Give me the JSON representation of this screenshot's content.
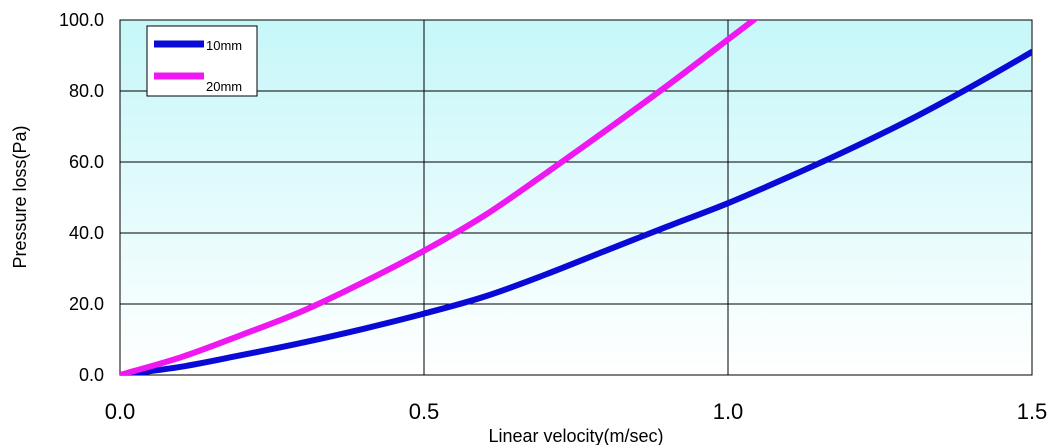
{
  "chart_data": {
    "type": "line",
    "title": "",
    "xlabel": "Linear velocity(m/sec)",
    "ylabel": "Pressure loss(Pa)",
    "xlim": [
      0.0,
      1.5
    ],
    "ylim": [
      0.0,
      100.0
    ],
    "x_ticks": [
      "0.0",
      "0.5",
      "1.0",
      "1.5"
    ],
    "y_ticks": [
      "0.0",
      "20.0",
      "40.0",
      "60.0",
      "80.0",
      "100.0"
    ],
    "grid": true,
    "legend_position": "top-left",
    "background_gradient": [
      "#c6f7f9",
      "#ffffff"
    ],
    "series": [
      {
        "name": "10mm",
        "color": "#0a0ad6",
        "x": [
          0.0,
          0.1,
          0.2,
          0.3,
          0.4,
          0.5,
          0.6,
          0.7,
          0.8,
          0.9,
          1.0,
          1.1,
          1.2,
          1.3,
          1.4,
          1.5
        ],
        "y": [
          0.0,
          2.3,
          5.6,
          9.1,
          13.0,
          17.3,
          22.1,
          28.3,
          35.1,
          41.8,
          48.4,
          55.8,
          63.6,
          72.0,
          81.2,
          91.0
        ]
      },
      {
        "name": "20mm",
        "color": "#f018f0",
        "x": [
          0.0,
          0.1,
          0.2,
          0.3,
          0.4,
          0.5,
          0.6,
          0.7,
          0.8,
          0.9,
          1.0,
          1.05
        ],
        "y": [
          0.0,
          5.0,
          11.3,
          18.0,
          26.1,
          35.0,
          45.0,
          56.8,
          69.0,
          81.5,
          94.5,
          101.0
        ]
      }
    ]
  }
}
